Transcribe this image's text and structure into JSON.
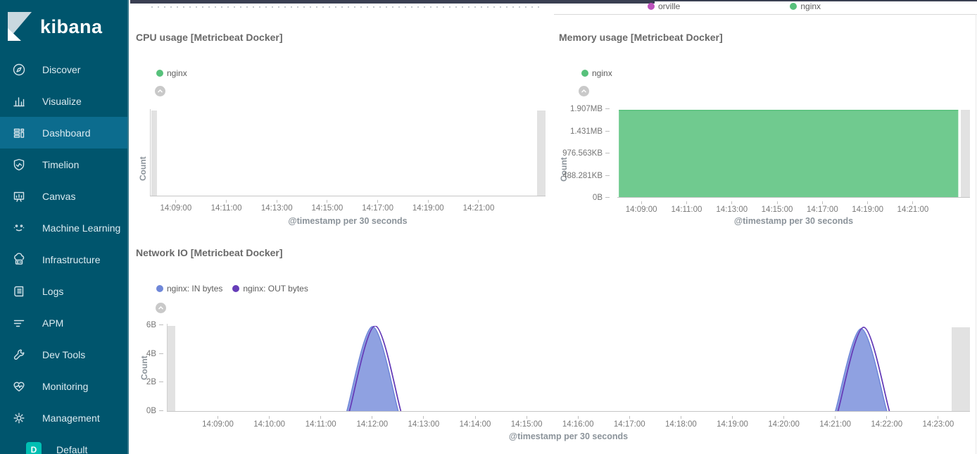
{
  "sidebar": {
    "logo_text": "kibana",
    "items": [
      {
        "label": "Discover",
        "icon": "compass-icon",
        "active": false
      },
      {
        "label": "Visualize",
        "icon": "bar-chart-icon",
        "active": false
      },
      {
        "label": "Dashboard",
        "icon": "grid-icon",
        "active": true
      },
      {
        "label": "Timelion",
        "icon": "shield-icon",
        "active": false
      },
      {
        "label": "Canvas",
        "icon": "easel-icon",
        "active": false
      },
      {
        "label": "Machine Learning",
        "icon": "robot-face-icon",
        "active": false
      },
      {
        "label": "Infrastructure",
        "icon": "cloud-server-icon",
        "active": false
      },
      {
        "label": "Logs",
        "icon": "scroll-icon",
        "active": false
      },
      {
        "label": "APM",
        "icon": "list-lines-icon",
        "active": false
      },
      {
        "label": "Dev Tools",
        "icon": "wrench-icon",
        "active": false
      },
      {
        "label": "Monitoring",
        "icon": "heart-pulse-icon",
        "active": false
      },
      {
        "label": "Management",
        "icon": "gear-icon",
        "active": false
      },
      {
        "label": "Default",
        "badge_letter": "D",
        "active": false
      }
    ]
  },
  "top_strip": {
    "legend": [
      {
        "label": "orville",
        "color": "#bc52bc"
      },
      {
        "label": "nginx",
        "color": "#57c17b"
      }
    ]
  },
  "chart_data": [
    {
      "id": "cpu",
      "type": "area",
      "title": "CPU usage [Metricbeat Docker]",
      "ylabel": "Count",
      "xlabel": "@timestamp per 30 seconds",
      "legend": [
        {
          "label": "nginx",
          "color": "#57c17b"
        }
      ],
      "x_ticks": [
        "14:09:00",
        "14:11:00",
        "14:13:00",
        "14:15:00",
        "14:17:00",
        "14:19:00",
        "14:21:00"
      ],
      "y_ticks": [],
      "x_domain": [
        "14:07:58",
        "14:23:40"
      ],
      "ylim": [
        0,
        1
      ],
      "series": [
        {
          "name": "nginx",
          "color": "#57c17b",
          "fill": true,
          "fill_opacity": 0.85,
          "segments": []
        }
      ]
    },
    {
      "id": "memory",
      "type": "area",
      "title": "Memory usage [Metricbeat Docker]",
      "ylabel": "Count",
      "xlabel": "@timestamp per 30 seconds",
      "legend": [
        {
          "label": "nginx",
          "color": "#57c17b"
        }
      ],
      "x_ticks": [
        "14:09:00",
        "14:11:00",
        "14:13:00",
        "14:15:00",
        "14:17:00",
        "14:19:00",
        "14:21:00"
      ],
      "y_ticks": [
        "1.907MB",
        "1.431MB",
        "976.563KB",
        "488.281KB",
        "0B"
      ],
      "x_domain": [
        "14:07:56",
        "14:23:31"
      ],
      "ylim": [
        0,
        2000000
      ],
      "series": [
        {
          "name": "nginx",
          "color": "#57c17b",
          "fill": true,
          "fill_opacity": 0.85,
          "stroke_width": 1.5,
          "segments": [
            [
              [
                "14:08:00",
                1990000
              ],
              [
                "14:23:00",
                1990000
              ]
            ]
          ]
        }
      ]
    },
    {
      "id": "network",
      "type": "area",
      "title": "Network IO [Metricbeat Docker]",
      "ylabel": "Count",
      "xlabel": "@timestamp per 30 seconds",
      "legend": [
        {
          "label": "nginx: IN bytes",
          "color": "#6f87d8"
        },
        {
          "label": "nginx: OUT bytes",
          "color": "#663db8"
        }
      ],
      "x_ticks": [
        "14:09:00",
        "14:10:00",
        "14:11:00",
        "14:12:00",
        "14:13:00",
        "14:14:00",
        "14:15:00",
        "14:16:00",
        "14:17:00",
        "14:18:00",
        "14:19:00",
        "14:20:00",
        "14:21:00",
        "14:22:00",
        "14:23:00"
      ],
      "y_ticks": [
        "6B",
        "4B",
        "2B",
        "0B"
      ],
      "x_domain": [
        "14:08:00",
        "14:23:37"
      ],
      "ylim": [
        0,
        6
      ],
      "series": [
        {
          "name": "nginx: IN bytes",
          "color": "#6f87d8",
          "fill": true,
          "fill_opacity": 0.78,
          "stroke_width": 1.5,
          "segments": [
            [
              [
                "14:11:30",
                0
              ],
              [
                "14:12:00",
                5.95
              ],
              [
                "14:12:30",
                0
              ]
            ],
            [
              [
                "14:21:00",
                0
              ],
              [
                "14:21:30",
                5.8
              ],
              [
                "14:22:00",
                0
              ]
            ]
          ]
        },
        {
          "name": "nginx: OUT bytes",
          "color": "#663db8",
          "fill": false,
          "stroke_width": 1.8,
          "segments": [
            [
              [
                "14:11:33",
                0
              ],
              [
                "14:12:03",
                6.0
              ],
              [
                "14:12:33",
                0
              ]
            ],
            [
              [
                "14:21:03",
                0
              ],
              [
                "14:21:33",
                5.9
              ],
              [
                "14:22:03",
                0
              ]
            ]
          ]
        }
      ]
    }
  ]
}
